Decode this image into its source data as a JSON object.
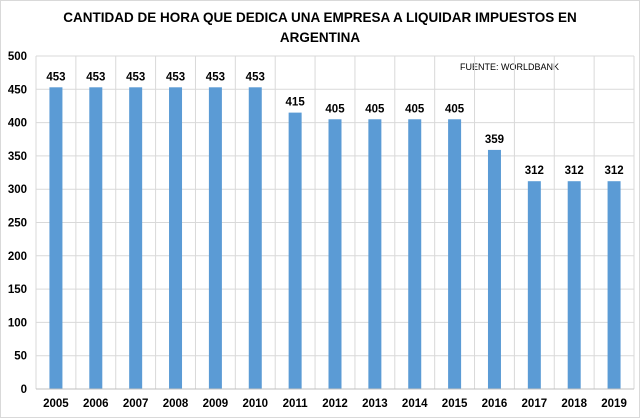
{
  "chart_data": {
    "type": "bar",
    "title_line1": "CANTIDAD  DE HORA QUE DEDICA UNA EMPRESA A LIQUIDAR  IMPUESTOS  EN",
    "title_line2": "ARGENTINA",
    "annotation": "FUENTE: WORLDBANK",
    "categories": [
      "2005",
      "2006",
      "2007",
      "2008",
      "2009",
      "2010",
      "2011",
      "2012",
      "2013",
      "2014",
      "2015",
      "2016",
      "2017",
      "2018",
      "2019"
    ],
    "values": [
      453,
      453,
      453,
      453,
      453,
      453,
      415,
      405,
      405,
      405,
      405,
      359,
      312,
      312,
      312
    ],
    "yticks": [
      0,
      50,
      100,
      150,
      200,
      250,
      300,
      350,
      400,
      450,
      500
    ],
    "ylim": [
      0,
      500
    ],
    "xlabel": "",
    "ylabel": "",
    "grid": true,
    "bar_color": "#5b9bd5",
    "grid_color": "#d9d9d9"
  }
}
